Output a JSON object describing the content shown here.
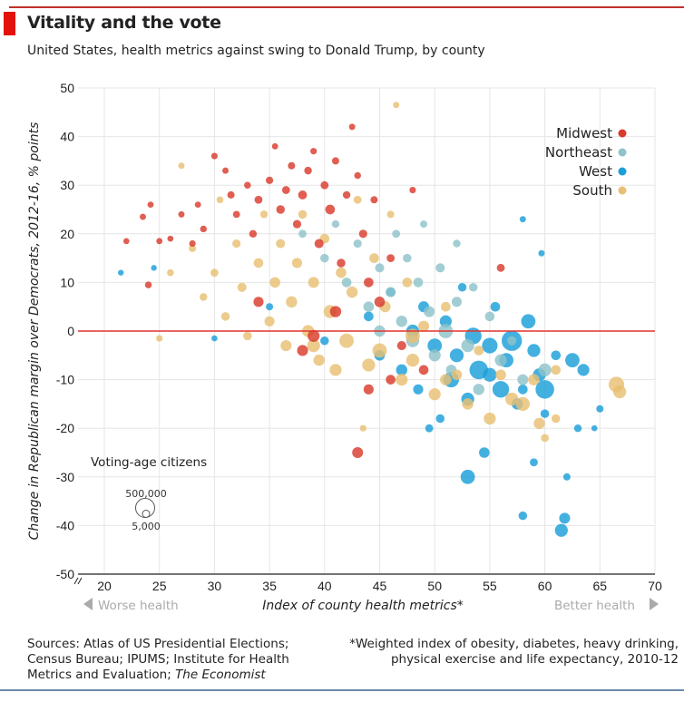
{
  "header": {
    "title": "Vitality and the vote",
    "subtitle": "United States, health metrics against swing to Donald Trump, by county"
  },
  "footer": {
    "sources": "Sources: Atlas of US Presidential Elections; Census Bureau; IPUMS; Institute for Health Metrics and Evaluation; ",
    "sources_italic": "The Economist",
    "note": "*Weighted index of obesity, diabetes, heavy drinking, physical exercise and life expectancy, 2010-12"
  },
  "chart_data": {
    "type": "scatter",
    "title": "Vitality and the vote",
    "xlabel": "Index of county health metrics*",
    "ylabel": "Change in Republican margin over Democrats, 2012-16, % points",
    "xlim": [
      17.5,
      70
    ],
    "ylim": [
      -50,
      50
    ],
    "xticks": [
      20,
      25,
      30,
      35,
      40,
      45,
      50,
      55,
      60,
      65,
      70
    ],
    "yticks": [
      50,
      40,
      30,
      20,
      10,
      0,
      -10,
      -20,
      -30,
      -40,
      -50
    ],
    "x_axis_break": true,
    "grid": true,
    "reference_line": {
      "y": 0,
      "color": "#e3342f"
    },
    "x_annotations": {
      "left": "Worse health",
      "right": "Better health"
    },
    "size_legend": {
      "title": "Voting-age citizens",
      "large": "500,000",
      "small": "5,000",
      "large_value": 500000,
      "small_value": 5000
    },
    "legend_placement": "top-right",
    "point_format": [
      "x",
      "y",
      "voting_age_citizens"
    ],
    "series": [
      {
        "name": "Midwest",
        "color": "#d93a2c",
        "points": [
          [
            22,
            18.5,
            8000
          ],
          [
            23.5,
            23.5,
            10000
          ],
          [
            24.2,
            26,
            9000
          ],
          [
            24,
            9.5,
            15000
          ],
          [
            25,
            18.5,
            9000
          ],
          [
            26,
            19,
            8000
          ],
          [
            27,
            24,
            10000
          ],
          [
            28,
            18,
            12000
          ],
          [
            28.5,
            26,
            9000
          ],
          [
            29,
            21,
            14000
          ],
          [
            30,
            36,
            12000
          ],
          [
            31,
            33,
            10000
          ],
          [
            31.5,
            28,
            20000
          ],
          [
            32,
            24,
            18000
          ],
          [
            33,
            30,
            15000
          ],
          [
            33.5,
            20,
            25000
          ],
          [
            34,
            27,
            30000
          ],
          [
            35,
            31,
            22000
          ],
          [
            35.5,
            38,
            9000
          ],
          [
            36,
            25,
            40000
          ],
          [
            36.5,
            29,
            30000
          ],
          [
            37,
            34,
            20000
          ],
          [
            37.5,
            22,
            35000
          ],
          [
            38,
            28,
            45000
          ],
          [
            38.5,
            33,
            25000
          ],
          [
            39,
            37,
            12000
          ],
          [
            39.5,
            18,
            50000
          ],
          [
            40,
            30,
            30000
          ],
          [
            40.5,
            25,
            60000
          ],
          [
            41,
            35,
            20000
          ],
          [
            41.5,
            14,
            40000
          ],
          [
            42,
            28,
            25000
          ],
          [
            42.5,
            42,
            10000
          ],
          [
            43,
            32,
            15000
          ],
          [
            43.5,
            20,
            35000
          ],
          [
            44,
            10,
            60000
          ],
          [
            44.5,
            27,
            20000
          ],
          [
            45,
            6,
            80000
          ],
          [
            46,
            15,
            30000
          ],
          [
            47,
            -3,
            50000
          ],
          [
            48,
            29,
            12000
          ],
          [
            39,
            -1,
            120000
          ],
          [
            38,
            -4,
            90000
          ],
          [
            44,
            -12,
            70000
          ],
          [
            43,
            -25,
            90000
          ],
          [
            49,
            -8,
            60000
          ],
          [
            56,
            13,
            30000
          ],
          [
            34,
            6,
            70000
          ],
          [
            41,
            4,
            100000
          ],
          [
            46,
            -10,
            60000
          ]
        ]
      },
      {
        "name": "Northeast",
        "color": "#8dc3c9",
        "points": [
          [
            38,
            20,
            30000
          ],
          [
            40,
            15,
            40000
          ],
          [
            41,
            22,
            25000
          ],
          [
            42,
            10,
            60000
          ],
          [
            43,
            18,
            35000
          ],
          [
            44,
            5,
            80000
          ],
          [
            45,
            13,
            50000
          ],
          [
            46,
            8,
            70000
          ],
          [
            46.5,
            20,
            30000
          ],
          [
            47,
            2,
            100000
          ],
          [
            47.5,
            15,
            40000
          ],
          [
            48,
            -2,
            150000
          ],
          [
            48.5,
            10,
            60000
          ],
          [
            49,
            22,
            20000
          ],
          [
            49.5,
            4,
            90000
          ],
          [
            50,
            -5,
            120000
          ],
          [
            50.5,
            13,
            50000
          ],
          [
            51,
            0,
            200000
          ],
          [
            51.5,
            -8,
            80000
          ],
          [
            52,
            6,
            70000
          ],
          [
            53,
            -3,
            150000
          ],
          [
            53.5,
            9,
            40000
          ],
          [
            54,
            -12,
            100000
          ],
          [
            55,
            3,
            60000
          ],
          [
            56,
            -6,
            120000
          ],
          [
            57,
            -2,
            50000
          ],
          [
            58,
            -10,
            90000
          ],
          [
            60,
            -8,
            150000
          ],
          [
            52,
            18,
            25000
          ],
          [
            45,
            0,
            100000
          ]
        ]
      },
      {
        "name": "West",
        "color": "#1a9fd9",
        "points": [
          [
            21.5,
            12,
            6000
          ],
          [
            24.5,
            13,
            6000
          ],
          [
            30,
            -1.5,
            8000
          ],
          [
            35,
            5,
            20000
          ],
          [
            40,
            -2,
            40000
          ],
          [
            44,
            3,
            60000
          ],
          [
            45,
            -5,
            80000
          ],
          [
            46,
            8,
            50000
          ],
          [
            47,
            -8,
            100000
          ],
          [
            48,
            0,
            150000
          ],
          [
            48.5,
            -12,
            70000
          ],
          [
            49,
            5,
            90000
          ],
          [
            49.5,
            -20,
            30000
          ],
          [
            50,
            -3,
            200000
          ],
          [
            50.5,
            -18,
            40000
          ],
          [
            51,
            2,
            120000
          ],
          [
            51.5,
            -10,
            250000
          ],
          [
            52,
            -5,
            180000
          ],
          [
            52.5,
            9,
            40000
          ],
          [
            53,
            -14,
            150000
          ],
          [
            53,
            -30,
            200000
          ],
          [
            53.5,
            -1,
            300000
          ],
          [
            54,
            -8,
            400000
          ],
          [
            54.5,
            -25,
            80000
          ],
          [
            55,
            -3,
            250000
          ],
          [
            55.5,
            5,
            60000
          ],
          [
            56,
            -12,
            300000
          ],
          [
            56.5,
            -6,
            200000
          ],
          [
            57,
            -2,
            500000
          ],
          [
            57.5,
            -15,
            100000
          ],
          [
            58,
            23,
            10000
          ],
          [
            58,
            -38,
            40000
          ],
          [
            58.5,
            2,
            200000
          ],
          [
            59,
            -27,
            30000
          ],
          [
            59.5,
            -9,
            150000
          ],
          [
            60,
            -17,
            40000
          ],
          [
            60,
            -12,
            400000
          ],
          [
            61,
            -5,
            60000
          ],
          [
            61.5,
            -41,
            150000
          ],
          [
            61.8,
            -38.5,
            90000
          ],
          [
            62,
            -30,
            20000
          ],
          [
            62.5,
            -6,
            200000
          ],
          [
            63,
            -20,
            25000
          ],
          [
            63.5,
            -8,
            120000
          ],
          [
            64.5,
            -20,
            8000
          ],
          [
            65,
            -16,
            20000
          ],
          [
            58,
            -12,
            60000
          ],
          [
            59.7,
            16,
            10000
          ],
          [
            59,
            -4,
            150000
          ],
          [
            55,
            -9,
            180000
          ]
        ]
      },
      {
        "name": "South",
        "color": "#e8bf73",
        "points": [
          [
            25,
            -1.5,
            12000
          ],
          [
            26,
            12,
            15000
          ],
          [
            27,
            34,
            10000
          ],
          [
            28,
            17,
            20000
          ],
          [
            29,
            7,
            25000
          ],
          [
            30,
            12,
            30000
          ],
          [
            30.5,
            27,
            15000
          ],
          [
            31,
            3,
            40000
          ],
          [
            32,
            18,
            35000
          ],
          [
            32.5,
            9,
            50000
          ],
          [
            33,
            -1,
            40000
          ],
          [
            34,
            14,
            60000
          ],
          [
            34.5,
            24,
            25000
          ],
          [
            35,
            2,
            70000
          ],
          [
            35.5,
            10,
            80000
          ],
          [
            36,
            18,
            50000
          ],
          [
            36.5,
            -3,
            90000
          ],
          [
            37,
            6,
            100000
          ],
          [
            37.5,
            14,
            70000
          ],
          [
            38,
            24,
            40000
          ],
          [
            38.5,
            0,
            120000
          ],
          [
            39,
            10,
            90000
          ],
          [
            39.5,
            -6,
            100000
          ],
          [
            40,
            19,
            60000
          ],
          [
            40.5,
            4,
            150000
          ],
          [
            41,
            -8,
            120000
          ],
          [
            41.5,
            12,
            80000
          ],
          [
            42,
            -2,
            200000
          ],
          [
            42.5,
            8,
            100000
          ],
          [
            43,
            27,
            30000
          ],
          [
            43.5,
            -20,
            12000
          ],
          [
            44,
            -7,
            150000
          ],
          [
            44.5,
            15,
            60000
          ],
          [
            45,
            -4,
            200000
          ],
          [
            45.5,
            5,
            90000
          ],
          [
            46,
            24,
            20000
          ],
          [
            46.5,
            46.5,
            10000
          ],
          [
            47,
            -10,
            120000
          ],
          [
            47.5,
            10,
            60000
          ],
          [
            48,
            -6,
            150000
          ],
          [
            49,
            1,
            90000
          ],
          [
            50,
            -13,
            120000
          ],
          [
            51,
            5,
            60000
          ],
          [
            52,
            -9,
            80000
          ],
          [
            53,
            -15,
            100000
          ],
          [
            54,
            -4,
            60000
          ],
          [
            55,
            -18,
            120000
          ],
          [
            56,
            -9,
            80000
          ],
          [
            57,
            -14,
            150000
          ],
          [
            58,
            -15,
            180000
          ],
          [
            59,
            -10,
            100000
          ],
          [
            59.5,
            -19,
            100000
          ],
          [
            60,
            -22,
            30000
          ],
          [
            61,
            -18,
            40000
          ],
          [
            61,
            -8,
            60000
          ],
          [
            66.5,
            -11,
            250000
          ],
          [
            66.8,
            -12.5,
            150000
          ],
          [
            51,
            -10,
            100000
          ],
          [
            48,
            -1,
            200000
          ],
          [
            39,
            -3,
            150000
          ]
        ]
      }
    ]
  }
}
